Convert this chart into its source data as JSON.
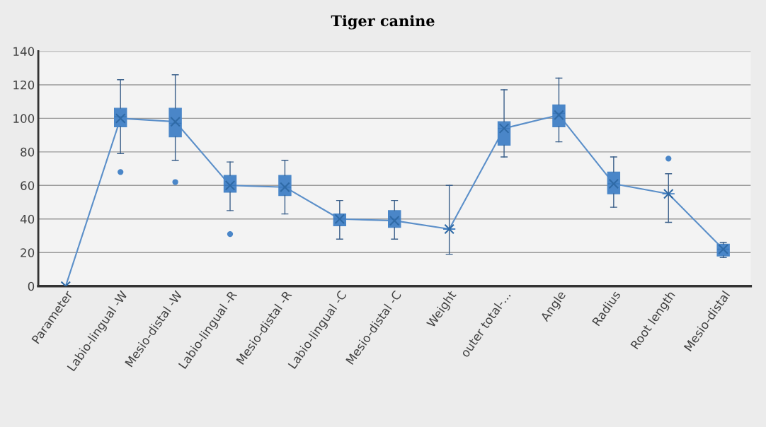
{
  "chart_data": {
    "type": "box",
    "title": "Tiger canine",
    "categories": [
      "Parameter",
      "Labio-lingual -W",
      "Mesio-distal -W",
      "Labio-lingual -R",
      "Mesio-distal -R",
      "Labio-lingual -C",
      "Mesio-distal -C",
      "Weight",
      "outer total-...",
      "Angle",
      "Radius",
      "Root length",
      "Mesio-distal"
    ],
    "boxes": [
      {
        "low": 0,
        "q1": 0,
        "median": 0,
        "q3": 0,
        "high": 0,
        "mean": 0
      },
      {
        "low": 79,
        "q1": 95,
        "median": 101,
        "q3": 106,
        "high": 123,
        "mean": 100,
        "outliers": [
          68
        ]
      },
      {
        "low": 75,
        "q1": 89,
        "median": 97,
        "q3": 106,
        "high": 126,
        "mean": 98,
        "outliers": [
          62
        ]
      },
      {
        "low": 45,
        "q1": 56,
        "median": 60,
        "q3": 66,
        "high": 74,
        "mean": 60,
        "outliers": [
          31
        ]
      },
      {
        "low": 43,
        "q1": 54,
        "median": 59,
        "q3": 66,
        "high": 75,
        "mean": 59
      },
      {
        "low": 28,
        "q1": 36,
        "median": 40,
        "q3": 43,
        "high": 51,
        "mean": 40
      },
      {
        "low": 28,
        "q1": 35,
        "median": 40,
        "q3": 45,
        "high": 51,
        "mean": 39
      },
      {
        "low": 19,
        "q1": 34,
        "median": 34,
        "q3": 34,
        "high": 60,
        "mean": 34
      },
      {
        "low": 77,
        "q1": 84,
        "median": 94,
        "q3": 98,
        "high": 117,
        "mean": 94
      },
      {
        "low": 86,
        "q1": 95,
        "median": 103,
        "q3": 108,
        "high": 124,
        "mean": 102
      },
      {
        "low": 47,
        "q1": 55,
        "median": 61,
        "q3": 68,
        "high": 77,
        "mean": 61
      },
      {
        "low": 38,
        "q1": 55,
        "median": 55,
        "q3": 55,
        "high": 67,
        "mean": 55,
        "outliers": [
          76
        ]
      },
      {
        "low": 17,
        "q1": 18,
        "median": 22,
        "q3": 25,
        "high": 26,
        "mean": 22
      }
    ],
    "color": "#4a86c8",
    "series": [
      {
        "type": "line",
        "color": "#5b8fc9",
        "values": [
          0,
          100,
          98,
          60,
          59,
          40,
          39,
          34,
          94,
          102,
          61,
          55,
          22
        ]
      }
    ],
    "ylim": [
      0,
      140
    ],
    "yticks": [
      0,
      20,
      40,
      60,
      80,
      100,
      120,
      140
    ],
    "grid": "y"
  }
}
